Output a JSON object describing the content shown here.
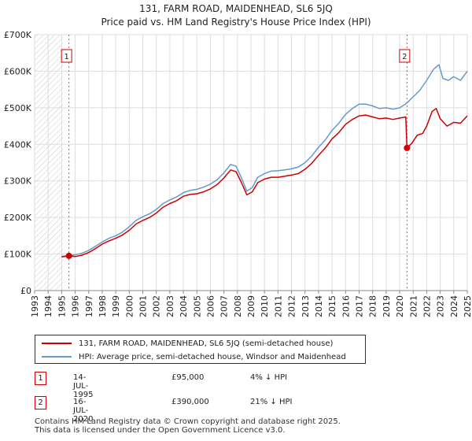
{
  "chart_data": {
    "type": "line",
    "title": "131, FARM ROAD, MAIDENHEAD, SL6 5JQ",
    "subtitle": "Price paid vs. HM Land Registry's House Price Index (HPI)",
    "xlabel": "",
    "ylabel": "",
    "xlim": [
      1993,
      2025
    ],
    "ylim": [
      0,
      700000
    ],
    "y_ticks": [
      0,
      100000,
      200000,
      300000,
      400000,
      500000,
      600000,
      700000
    ],
    "y_tick_labels": [
      "£0",
      "£100K",
      "£200K",
      "£300K",
      "£400K",
      "£500K",
      "£600K",
      "£700K"
    ],
    "x_ticks": [
      1993,
      1994,
      1995,
      1996,
      1997,
      1998,
      1999,
      2000,
      2001,
      2002,
      2003,
      2004,
      2005,
      2006,
      2007,
      2008,
      2009,
      2010,
      2011,
      2012,
      2013,
      2014,
      2015,
      2016,
      2017,
      2018,
      2019,
      2020,
      2021,
      2022,
      2023,
      2024,
      2025
    ],
    "x_tick_labels": [
      "1993",
      "1994",
      "1995",
      "1996",
      "1997",
      "1998",
      "1999",
      "2000",
      "2001",
      "2002",
      "2003",
      "2004",
      "2005",
      "2006",
      "2007",
      "2008",
      "2009",
      "2010",
      "2011",
      "2012",
      "2013",
      "2014",
      "2015",
      "2016",
      "2017",
      "2018",
      "2019",
      "2020",
      "2021",
      "2022",
      "2023",
      "2024",
      "2025"
    ],
    "grid": true,
    "hatched_range_end": 1995.1,
    "series": [
      {
        "name": "131, FARM ROAD, MAIDENHEAD, SL6 5JQ (semi-detached house)",
        "color": "#cc0000",
        "x": [
          1995.0,
          1995.54,
          1996.0,
          1996.5,
          1997.0,
          1997.5,
          1998.0,
          1998.5,
          1999.0,
          1999.5,
          2000.0,
          2000.5,
          2001.0,
          2001.5,
          2002.0,
          2002.5,
          2003.0,
          2003.5,
          2004.0,
          2004.5,
          2005.0,
          2005.5,
          2006.0,
          2006.5,
          2007.0,
          2007.5,
          2007.9,
          2008.3,
          2008.7,
          2009.1,
          2009.5,
          2010.0,
          2010.5,
          2011.0,
          2011.5,
          2012.0,
          2012.5,
          2013.0,
          2013.5,
          2014.0,
          2014.5,
          2015.0,
          2015.5,
          2016.0,
          2016.5,
          2017.0,
          2017.5,
          2018.0,
          2018.5,
          2019.0,
          2019.5,
          2020.0,
          2020.45,
          2020.54,
          2020.9,
          2021.3,
          2021.7,
          2022.0,
          2022.4,
          2022.7,
          2023.0,
          2023.5,
          2024.0,
          2024.5,
          2025.0
        ],
        "y": [
          92000,
          95000,
          93000,
          97000,
          104000,
          115000,
          127000,
          136000,
          143000,
          152000,
          165000,
          182000,
          192000,
          200000,
          212000,
          228000,
          238000,
          246000,
          258000,
          263000,
          265000,
          270000,
          278000,
          290000,
          308000,
          330000,
          325000,
          295000,
          262000,
          270000,
          295000,
          305000,
          310000,
          310000,
          313000,
          316000,
          320000,
          332000,
          348000,
          370000,
          390000,
          415000,
          432000,
          455000,
          468000,
          478000,
          480000,
          475000,
          470000,
          472000,
          468000,
          472000,
          475000,
          390000,
          403000,
          425000,
          430000,
          450000,
          490000,
          498000,
          470000,
          450000,
          460000,
          458000,
          478000
        ]
      },
      {
        "name": "HPI: Average price, semi-detached house, Windsor and Maidenhead",
        "color": "#6699cc",
        "x": [
          1995.0,
          1995.5,
          1996.0,
          1996.5,
          1997.0,
          1997.5,
          1998.0,
          1998.5,
          1999.0,
          1999.5,
          2000.0,
          2000.5,
          2001.0,
          2001.5,
          2002.0,
          2002.5,
          2003.0,
          2003.5,
          2004.0,
          2004.5,
          2005.0,
          2005.5,
          2006.0,
          2006.5,
          2007.0,
          2007.5,
          2007.9,
          2008.3,
          2008.7,
          2009.1,
          2009.5,
          2010.0,
          2010.5,
          2011.0,
          2011.5,
          2012.0,
          2012.5,
          2013.0,
          2013.5,
          2014.0,
          2014.5,
          2015.0,
          2015.5,
          2016.0,
          2016.5,
          2017.0,
          2017.5,
          2018.0,
          2018.5,
          2019.0,
          2019.5,
          2020.0,
          2020.5,
          2021.0,
          2021.5,
          2022.0,
          2022.5,
          2022.9,
          2023.2,
          2023.6,
          2024.0,
          2024.5,
          2025.0
        ],
        "y": [
          93000,
          96000,
          98000,
          102000,
          110000,
          121000,
          133000,
          143000,
          150000,
          160000,
          175000,
          192000,
          202000,
          210000,
          222000,
          238000,
          248000,
          256000,
          268000,
          274000,
          277000,
          283000,
          291000,
          303000,
          322000,
          345000,
          340000,
          308000,
          272000,
          282000,
          310000,
          320000,
          327000,
          328000,
          330000,
          333000,
          338000,
          350000,
          368000,
          392000,
          412000,
          438000,
          458000,
          482000,
          498000,
          510000,
          510000,
          505000,
          498000,
          500000,
          496000,
          500000,
          512000,
          530000,
          548000,
          575000,
          605000,
          618000,
          580000,
          575000,
          585000,
          575000,
          600000
        ]
      }
    ],
    "sales": [
      {
        "marker": "1",
        "x": 1995.54,
        "y": 95000,
        "date": "14-JUL-1995",
        "price": "£95,000",
        "hpi": "4% ↓ HPI"
      },
      {
        "marker": "2",
        "x": 2020.54,
        "y": 390000,
        "date": "16-JUL-2020",
        "price": "£390,000",
        "hpi": "21% ↓ HPI"
      }
    ]
  },
  "legend": {
    "entries": [
      {
        "label": "131, FARM ROAD, MAIDENHEAD, SL6 5JQ (semi-detached house)",
        "color": "#cc0000"
      },
      {
        "label": "HPI: Average price, semi-detached house, Windsor and Maidenhead",
        "color": "#6699cc"
      }
    ]
  },
  "footer": {
    "line1": "Contains HM Land Registry data © Crown copyright and database right 2025.",
    "line2": "This data is licensed under the Open Government Licence v3.0."
  }
}
